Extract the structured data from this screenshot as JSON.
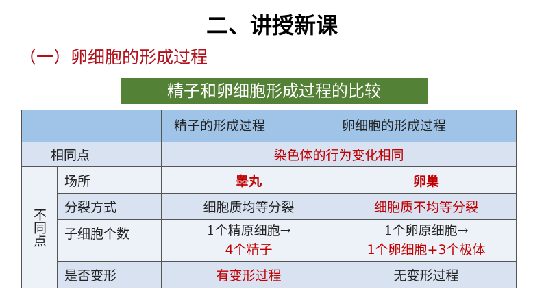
{
  "title": "二、讲授新课",
  "subtitle": "（一）卵细胞的形成过程",
  "banner": "精子和卵细胞形成过程的比较",
  "table": {
    "headers": [
      "精子的形成过程",
      "卵细胞的形成过程"
    ],
    "same_label": "相同点",
    "same_value": "染色体的行为变化相同",
    "diff_label": "不同点",
    "rows": [
      {
        "label": "场所",
        "sperm": "睾丸",
        "egg": "卵巢"
      },
      {
        "label": "分裂方式",
        "sperm": "细胞质均等分裂",
        "egg": "细胞质不均等分裂"
      },
      {
        "label": "子细胞个数",
        "sperm_line1": "1个精原细胞→",
        "sperm_line2": "4个精子",
        "egg_line1": "1个卵原细胞→",
        "egg_line2": "1个卵细胞+3个极体"
      },
      {
        "label": "是否变形",
        "sperm": "有变形过程",
        "egg": "无变形过程"
      }
    ]
  },
  "colors": {
    "banner": "#538135",
    "header": "#9fc4e7",
    "accent_red": "#c00000"
  }
}
